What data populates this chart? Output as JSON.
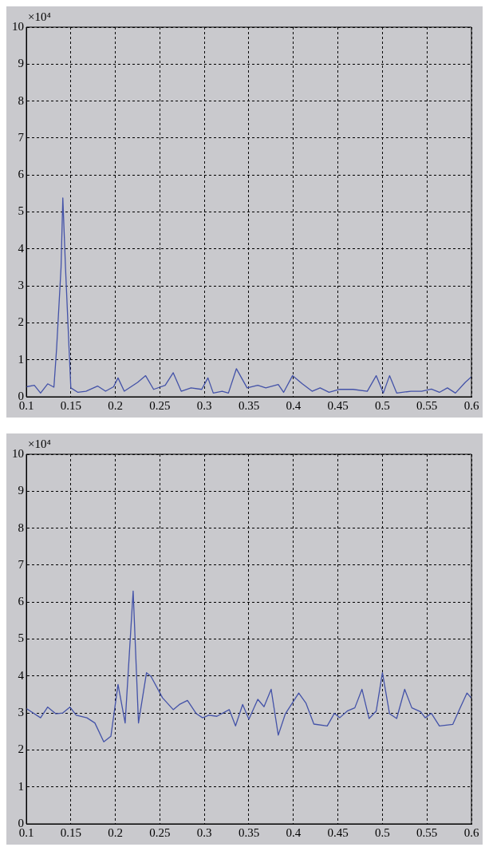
{
  "chart_data": [
    {
      "type": "line",
      "annotations": [
        "×10⁴"
      ],
      "xlim": [
        0.1,
        0.6
      ],
      "xticks": [
        0.1,
        0.15,
        0.2,
        0.25,
        0.3,
        0.35,
        0.4,
        0.45,
        0.5,
        0.55,
        0.6
      ],
      "ylim": [
        0,
        10
      ],
      "yticks": [
        0,
        1,
        2,
        3,
        4,
        5,
        6,
        7,
        8,
        9,
        10
      ],
      "grid": true,
      "marker": "none",
      "line_style": "solid",
      "legend": false,
      "series": [
        {
          "color": "#4352a8",
          "x": [
            0.1,
            0.109,
            0.116,
            0.124,
            0.131,
            0.134,
            0.139,
            0.141,
            0.144,
            0.148,
            0.15,
            0.158,
            0.167,
            0.18,
            0.189,
            0.198,
            0.203,
            0.21,
            0.225,
            0.234,
            0.243,
            0.256,
            0.265,
            0.274,
            0.285,
            0.297,
            0.304,
            0.31,
            0.32,
            0.327,
            0.336,
            0.348,
            0.36,
            0.369,
            0.383,
            0.389,
            0.399,
            0.41,
            0.421,
            0.43,
            0.44,
            0.452,
            0.467,
            0.483,
            0.493,
            0.501,
            0.508,
            0.516,
            0.532,
            0.544,
            0.555,
            0.564,
            0.573,
            0.582,
            0.593,
            0.6
          ],
          "values": [
            0.27,
            0.31,
            0.1,
            0.35,
            0.26,
            1.3,
            3.5,
            5.38,
            3.5,
            1.3,
            0.24,
            0.12,
            0.15,
            0.29,
            0.15,
            0.27,
            0.51,
            0.15,
            0.39,
            0.57,
            0.2,
            0.31,
            0.65,
            0.15,
            0.24,
            0.2,
            0.51,
            0.1,
            0.15,
            0.1,
            0.76,
            0.24,
            0.31,
            0.24,
            0.33,
            0.12,
            0.57,
            0.35,
            0.15,
            0.24,
            0.12,
            0.2,
            0.2,
            0.15,
            0.57,
            0.1,
            0.57,
            0.1,
            0.15,
            0.15,
            0.21,
            0.12,
            0.24,
            0.1,
            0.39,
            0.54
          ]
        }
      ]
    },
    {
      "type": "line",
      "annotations": [
        "×10⁴"
      ],
      "xlim": [
        0.1,
        0.6
      ],
      "xticks": [
        0.1,
        0.15,
        0.2,
        0.25,
        0.3,
        0.35,
        0.4,
        0.45,
        0.5,
        0.55,
        0.6
      ],
      "ylim": [
        0,
        10
      ],
      "yticks": [
        0,
        1,
        2,
        3,
        4,
        5,
        6,
        7,
        8,
        9,
        10
      ],
      "grid": true,
      "marker": "none",
      "line_style": "solid",
      "legend": false,
      "series": [
        {
          "color": "#4352a8",
          "x": [
            0.1,
            0.116,
            0.124,
            0.133,
            0.141,
            0.149,
            0.156,
            0.168,
            0.177,
            0.187,
            0.195,
            0.203,
            0.211,
            0.22,
            0.226,
            0.235,
            0.24,
            0.253,
            0.265,
            0.272,
            0.281,
            0.291,
            0.298,
            0.305,
            0.314,
            0.328,
            0.335,
            0.343,
            0.35,
            0.36,
            0.367,
            0.375,
            0.383,
            0.391,
            0.406,
            0.414,
            0.423,
            0.438,
            0.446,
            0.452,
            0.461,
            0.469,
            0.477,
            0.485,
            0.493,
            0.5,
            0.508,
            0.516,
            0.525,
            0.533,
            0.543,
            0.548,
            0.555,
            0.564,
            0.579,
            0.587,
            0.595,
            0.6
          ],
          "values": [
            3.12,
            2.87,
            3.16,
            2.98,
            3.0,
            3.16,
            2.94,
            2.87,
            2.73,
            2.22,
            2.37,
            3.77,
            2.73,
            6.3,
            2.73,
            4.09,
            3.99,
            3.41,
            3.09,
            3.23,
            3.34,
            2.98,
            2.87,
            2.94,
            2.91,
            3.09,
            2.65,
            3.23,
            2.83,
            3.37,
            3.17,
            3.64,
            2.4,
            2.98,
            3.54,
            3.27,
            2.7,
            2.65,
            2.99,
            2.87,
            3.06,
            3.14,
            3.64,
            2.85,
            3.05,
            4.09,
            2.98,
            2.85,
            3.64,
            3.14,
            3.03,
            2.87,
            2.99,
            2.65,
            2.69,
            3.12,
            3.54,
            3.4
          ]
        }
      ]
    }
  ]
}
